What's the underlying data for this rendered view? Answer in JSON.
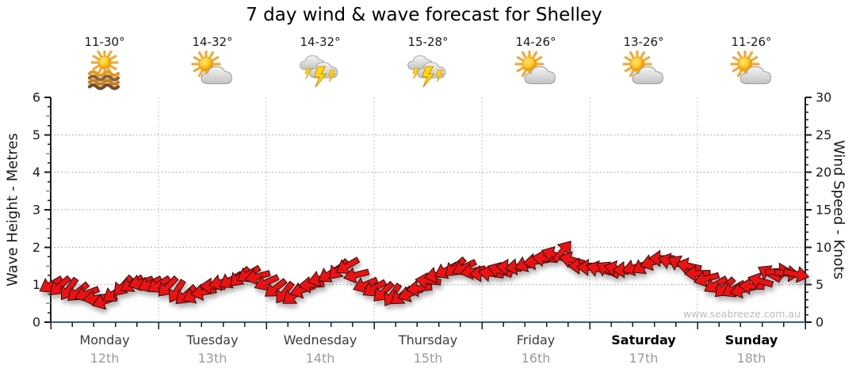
{
  "title": "7 day wind & wave forecast for Shelley",
  "chart_data": {
    "type": "wind-direction-arrows",
    "title": "7 day wind & wave forecast for Shelley",
    "watermark": "www.seabreeze.com.au",
    "legend_position": "none",
    "grid": "dotted",
    "days": [
      {
        "name": "Monday",
        "date": "12th",
        "temps": "11-30°",
        "icon": "sun-over-water",
        "bold": false
      },
      {
        "name": "Tuesday",
        "date": "13th",
        "temps": "14-32°",
        "icon": "sun-behind-cloud",
        "bold": false
      },
      {
        "name": "Wednesday",
        "date": "14th",
        "temps": "14-32°",
        "icon": "storm-clouds-lightning",
        "bold": false
      },
      {
        "name": "Thursday",
        "date": "15th",
        "temps": "15-28°",
        "icon": "storm-clouds-lightning",
        "bold": false
      },
      {
        "name": "Friday",
        "date": "16th",
        "temps": "14-26°",
        "icon": "sun-behind-cloud",
        "bold": false
      },
      {
        "name": "Saturday",
        "date": "17th",
        "temps": "13-26°",
        "icon": "sun-behind-cloud",
        "bold": true
      },
      {
        "name": "Sunday",
        "date": "18th",
        "temps": "11-26°",
        "icon": "sun-behind-cloud",
        "bold": true
      }
    ],
    "y_left": {
      "label": "Wave Height - Metres",
      "min": 0,
      "max": 6,
      "ticks": [
        0,
        1,
        2,
        3,
        4,
        5,
        6
      ]
    },
    "y_right": {
      "label": "Wind Speed - Knots",
      "min": 0,
      "max": 30,
      "ticks": [
        0,
        5,
        10,
        15,
        20,
        25,
        30
      ]
    },
    "x_axis": {
      "days_span": 7,
      "minor_ticks_per_day": 4
    },
    "series": {
      "hours_start": 0,
      "hours_step": 2,
      "wind_speed_knots": [
        5.0,
        4.8,
        4.4,
        4.0,
        3.8,
        3.2,
        2.8,
        3.8,
        4.8,
        5.1,
        5.3,
        5.1,
        5.0,
        4.7,
        4.1,
        3.6,
        3.6,
        4.0,
        4.8,
        5.3,
        5.6,
        6.0,
        6.4,
        6.1,
        5.3,
        4.5,
        3.9,
        3.5,
        4.3,
        5.0,
        5.8,
        6.4,
        7.0,
        7.5,
        6.3,
        5.0,
        4.5,
        4.0,
        3.6,
        3.5,
        3.8,
        4.5,
        5.5,
        6.3,
        6.9,
        7.3,
        7.3,
        6.8,
        6.5,
        6.5,
        6.9,
        7.3,
        7.4,
        7.8,
        8.1,
        8.5,
        9.0,
        9.5,
        8.3,
        7.5,
        7.3,
        7.1,
        7.0,
        7.1,
        7.0,
        7.3,
        7.5,
        8.0,
        8.5,
        8.1,
        7.8,
        7.5,
        6.5,
        5.8,
        5.0,
        4.6,
        4.4,
        4.3,
        4.8,
        5.5,
        6.5,
        6.8,
        6.5,
        6.4
      ],
      "wave_height_m": [
        1.0,
        0.96,
        0.88,
        0.8,
        0.76,
        0.64,
        0.56,
        0.76,
        0.96,
        1.02,
        1.06,
        1.02,
        1.0,
        0.94,
        0.82,
        0.72,
        0.72,
        0.8,
        0.96,
        1.06,
        1.12,
        1.2,
        1.28,
        1.22,
        1.06,
        0.9,
        0.78,
        0.7,
        0.86,
        1.0,
        1.16,
        1.28,
        1.4,
        1.5,
        1.26,
        1.0,
        0.9,
        0.8,
        0.72,
        0.7,
        0.76,
        0.9,
        1.1,
        1.26,
        1.38,
        1.46,
        1.46,
        1.36,
        1.3,
        1.3,
        1.38,
        1.46,
        1.48,
        1.56,
        1.62,
        1.7,
        1.8,
        1.9,
        1.66,
        1.5,
        1.46,
        1.42,
        1.4,
        1.42,
        1.4,
        1.46,
        1.5,
        1.6,
        1.7,
        1.62,
        1.56,
        1.5,
        1.3,
        1.16,
        1.0,
        0.92,
        0.88,
        0.86,
        0.96,
        1.1,
        1.3,
        1.36,
        1.3,
        1.28
      ],
      "direction_deg": [
        150,
        138,
        125,
        140,
        158,
        172,
        160,
        145,
        132,
        148,
        164,
        155,
        148,
        134,
        122,
        138,
        156,
        170,
        182,
        166,
        150,
        136,
        150,
        165,
        155,
        142,
        128,
        144,
        162,
        176,
        164,
        148,
        134,
        150,
        166,
        158,
        150,
        136,
        124,
        142,
        160,
        174,
        186,
        168,
        152,
        138,
        154,
        168,
        175,
        188,
        200,
        186,
        172,
        158,
        172,
        186,
        200,
        310,
        195,
        180,
        182,
        196,
        210,
        194,
        178,
        164,
        150,
        164,
        180,
        196,
        208,
        192,
        178,
        164,
        150,
        136,
        150,
        166,
        182,
        196,
        210,
        355,
        5,
        12
      ]
    },
    "colors": {
      "arrow_fill": "#ee1111",
      "arrow_outline": "#2b1111",
      "x_axis_line": "#2e618c",
      "y_axis_line": "#1a1a1a",
      "gridline": "#9a9a9a",
      "watermark_text": "#bdbdbd",
      "title_text": "#000000"
    }
  }
}
